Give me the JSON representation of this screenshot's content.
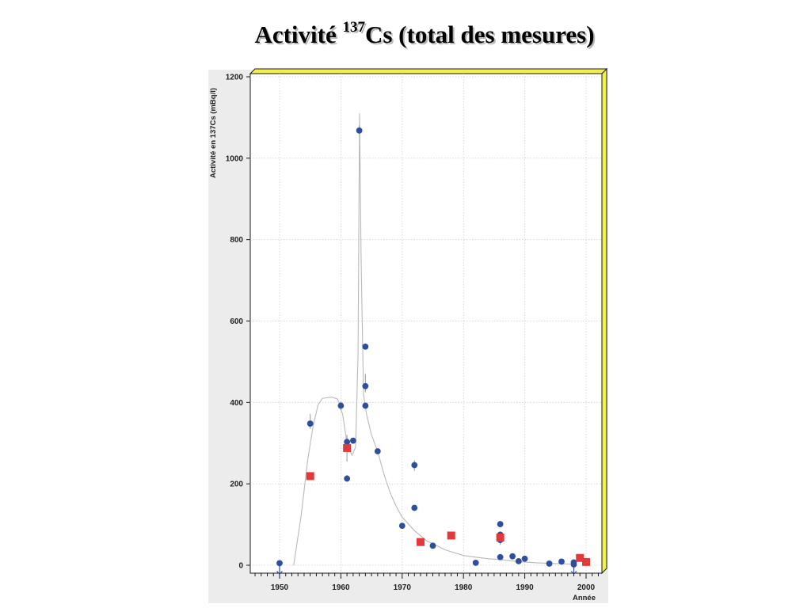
{
  "slide": {
    "title_prefix": "Activité ",
    "title_superscript": "137",
    "title_suffix": "Cs (total des mesures)"
  },
  "chart_data": {
    "type": "scatter",
    "title": "Activité 137Cs (total des mesures)",
    "xlabel": "Année",
    "ylabel": "Activité en 137Cs (mBq/l)",
    "xlim": [
      1945,
      2002.5
    ],
    "ylim": [
      0,
      1200
    ],
    "x_ticks": [
      1950,
      1960,
      1970,
      1980,
      1990,
      2000
    ],
    "y_ticks": [
      0,
      200,
      400,
      600,
      800,
      1000,
      1200
    ],
    "grid": true,
    "colors": {
      "circle_series": "#2f4e9c",
      "square_series": "#e23a3a",
      "trend_line": "#b9b9b9",
      "frame_accent": "#f2ee4a",
      "marker_arrow": "#2f4e9c"
    },
    "series": [
      {
        "marker": "circle",
        "points": [
          [
            1950,
            5
          ],
          [
            1955,
            348
          ],
          [
            1960,
            392
          ],
          [
            1961,
            303
          ],
          [
            1961,
            213
          ],
          [
            1962,
            306
          ],
          [
            1963,
            1068
          ],
          [
            1964,
            537
          ],
          [
            1964,
            440
          ],
          [
            1964,
            392
          ],
          [
            1966,
            280
          ],
          [
            1970,
            97
          ],
          [
            1972,
            246
          ],
          [
            1972,
            141
          ],
          [
            1975,
            48
          ],
          [
            1982,
            6
          ],
          [
            1986,
            101
          ],
          [
            1986,
            75
          ],
          [
            1986,
            62
          ],
          [
            1986,
            20
          ],
          [
            1988,
            22
          ],
          [
            1989,
            10
          ],
          [
            1990,
            16
          ],
          [
            1994,
            4
          ],
          [
            1996,
            9
          ],
          [
            1998,
            7
          ],
          [
            1998,
            2
          ]
        ]
      },
      {
        "marker": "square",
        "points": [
          [
            1955,
            219
          ],
          [
            1961,
            288
          ],
          [
            1973,
            57
          ],
          [
            1978,
            73
          ],
          [
            1986,
            68
          ],
          [
            1999,
            18
          ],
          [
            2000,
            8
          ]
        ]
      }
    ],
    "trend_line": [
      [
        1952.3,
        0
      ],
      [
        1953.5,
        120
      ],
      [
        1954.6,
        260
      ],
      [
        1955.5,
        345
      ],
      [
        1956.3,
        395
      ],
      [
        1957,
        410
      ],
      [
        1958.5,
        413
      ],
      [
        1959.5,
        408
      ],
      [
        1960.3,
        370
      ],
      [
        1961,
        300
      ],
      [
        1961.8,
        270
      ],
      [
        1962.4,
        290
      ],
      [
        1962.8,
        520
      ],
      [
        1963.05,
        1110
      ],
      [
        1963.3,
        760
      ],
      [
        1963.7,
        420
      ],
      [
        1964.2,
        370
      ],
      [
        1965,
        320
      ],
      [
        1966,
        280
      ],
      [
        1967,
        225
      ],
      [
        1968,
        180
      ],
      [
        1969,
        145
      ],
      [
        1970,
        118
      ],
      [
        1972,
        85
      ],
      [
        1974,
        60
      ],
      [
        1977,
        38
      ],
      [
        1980,
        24
      ],
      [
        1984,
        16
      ],
      [
        1986,
        14
      ],
      [
        1987,
        12
      ],
      [
        1989,
        9
      ],
      [
        1992,
        6
      ],
      [
        1995,
        4
      ],
      [
        1998,
        3
      ]
    ],
    "error_bars": [
      {
        "x": 1955,
        "low": 335,
        "high": 372
      },
      {
        "x": 1960,
        "low": 380,
        "high": 402
      },
      {
        "x": 1961,
        "low": 255,
        "high": 320
      },
      {
        "x": 1961,
        "low": 205,
        "high": 222
      },
      {
        "x": 1963,
        "low": 1060,
        "high": 1080
      },
      {
        "x": 1964,
        "low": 425,
        "high": 470
      },
      {
        "x": 1972,
        "low": 232,
        "high": 258
      },
      {
        "x": 1986,
        "low": 50,
        "high": 82
      }
    ],
    "below_detection_arrows": [
      1950,
      1998
    ]
  }
}
